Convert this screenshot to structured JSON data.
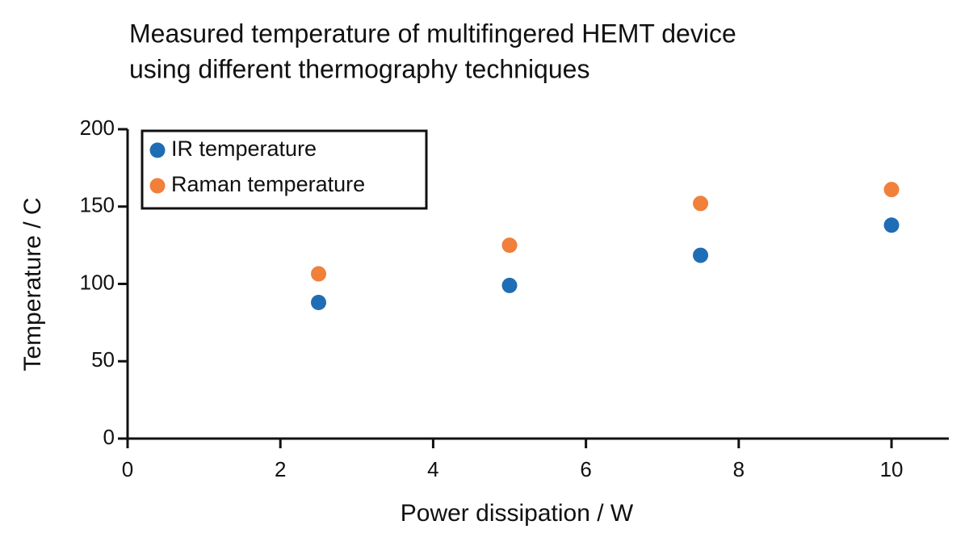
{
  "chart_data": {
    "type": "scatter",
    "title": [
      "Measured temperature of multifingered HEMT device",
      "using different thermography techniques"
    ],
    "x_label": "Power dissipation / W",
    "y_label": "Temperature / C",
    "series": [
      {
        "name": "IR temperature",
        "color": "#1f6db5",
        "x": [
          2.5,
          5,
          7.5,
          10
        ],
        "values": [
          88,
          99,
          118.5,
          138
        ]
      },
      {
        "name": "Raman temperature",
        "color": "#f0803a",
        "x": [
          2.5,
          5,
          7.5,
          10
        ],
        "values": [
          106.5,
          125,
          152,
          161
        ]
      }
    ],
    "xlim": [
      0,
      10.75
    ],
    "xticks": [
      0,
      2,
      4,
      6,
      8,
      10
    ],
    "ylim": [
      0,
      200
    ],
    "yticks": [
      0,
      50,
      100,
      150,
      200
    ],
    "legend": "upper left",
    "grid": false
  }
}
